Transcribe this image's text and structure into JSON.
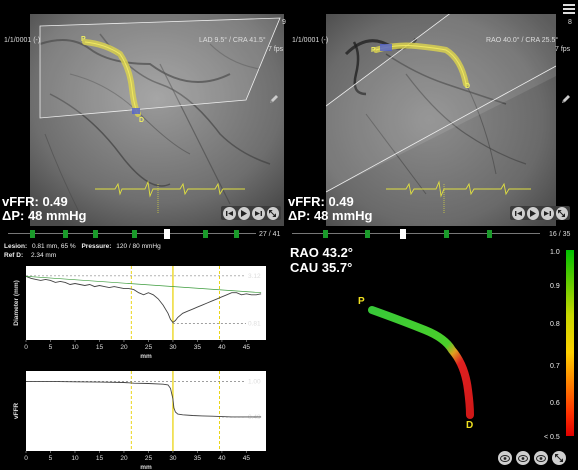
{
  "left_view": {
    "series_label": "1/1/0001 (-)",
    "angle_label": "LAD 9.5° / CRA 41.5°",
    "frame_count_top": "9",
    "fps": "7 fps",
    "marker_p": "P",
    "marker_d": "D",
    "vffr_label": "vFFR: 0.49",
    "dp_label": "ΔP: 48 mmHg",
    "frame_position": "27 / 41"
  },
  "right_view": {
    "series_label": "1/1/0001 (-)",
    "angle_label": "RAO 40.0° / CRA 25.5°",
    "frame_count_top": "8",
    "fps": "7 fps",
    "marker_p": "P",
    "marker_d": "D",
    "vffr_label": "vFFR: 0.49",
    "dp_label": "ΔP: 48 mmHg",
    "frame_position": "16 / 35"
  },
  "lesion_info": {
    "lesion": "Lesion:",
    "lesion_value": "0.81 mm, 65 %",
    "pressure": "Pressure:",
    "pressure_value": "120 / 80 mmHg",
    "ref": "Ref D:",
    "ref_value": "2.34 mm"
  },
  "model_view": {
    "rao_label": "RAO 43.2°",
    "cau_label": "CAU 35.7°",
    "marker_p": "P",
    "marker_d": "D"
  },
  "color_legend": {
    "ticks": [
      "1.0",
      "0.9",
      "0.8",
      "0.7",
      "0.6",
      "< 0.5"
    ],
    "colors": [
      "#00c000",
      "#c8d800",
      "#ffd000",
      "#ff8000",
      "#ff3000",
      "#e00000"
    ]
  },
  "chart_data": [
    {
      "type": "line",
      "ylabel": "Diameter (mm)",
      "xlabel": "mm",
      "xlim": [
        0,
        49
      ],
      "x_ticks": [
        "0",
        "5",
        "10",
        "15",
        "20",
        "25",
        "30",
        "35",
        "40",
        "45"
      ],
      "ref_values": [
        "3.12",
        "0.81"
      ],
      "series": [
        {
          "x": [
            0,
            1,
            2,
            3,
            4,
            5,
            6,
            7,
            8,
            9,
            10,
            11,
            12,
            13,
            14,
            15,
            16,
            17,
            18,
            19,
            20,
            21,
            22,
            23,
            24,
            25,
            26,
            27,
            28,
            29,
            29.5,
            30,
            30.5,
            31,
            32,
            33,
            34,
            35,
            36,
            37,
            38,
            39,
            40,
            41,
            42,
            43,
            44,
            45,
            46,
            47,
            48
          ],
          "y": [
            3.1,
            3.0,
            2.95,
            2.9,
            2.95,
            2.9,
            2.8,
            2.85,
            2.8,
            2.7,
            2.75,
            2.7,
            2.65,
            2.7,
            2.6,
            2.65,
            2.6,
            2.55,
            2.6,
            2.55,
            2.5,
            2.5,
            2.45,
            2.3,
            2.2,
            2.3,
            2.2,
            2.0,
            1.7,
            1.3,
            1.0,
            0.85,
            0.95,
            1.1,
            1.3,
            1.4,
            1.5,
            1.6,
            1.7,
            1.8,
            1.9,
            2.0,
            2.1,
            2.2,
            2.3,
            2.3,
            2.2,
            2.25,
            2.2,
            2.2,
            2.25
          ]
        },
        {
          "x": [
            0,
            48
          ],
          "y": [
            3.1,
            2.3
          ]
        }
      ],
      "ylim": [
        0,
        3.6
      ],
      "vlines": [
        21.5,
        30,
        39.5
      ]
    },
    {
      "type": "line",
      "ylabel": "vFFR",
      "xlabel": "mm",
      "xlim": [
        0,
        49
      ],
      "x_ticks": [
        "0",
        "5",
        "10",
        "15",
        "20",
        "25",
        "30",
        "35",
        "40",
        "45"
      ],
      "ref_values": [
        "1.00",
        "0.49"
      ],
      "series": [
        {
          "x": [
            0,
            5,
            10,
            15,
            20,
            21,
            22,
            25,
            28,
            29,
            29.5,
            30,
            30.2,
            30.5,
            31,
            32,
            34,
            36,
            38,
            40,
            42,
            44,
            46,
            48
          ],
          "y": [
            1.0,
            1.0,
            0.995,
            0.99,
            0.985,
            0.98,
            0.975,
            0.97,
            0.96,
            0.95,
            0.9,
            0.75,
            0.62,
            0.56,
            0.53,
            0.52,
            0.51,
            0.505,
            0.5,
            0.495,
            0.49,
            0.49,
            0.49,
            0.49
          ]
        }
      ],
      "ylim": [
        0,
        1.15
      ],
      "vlines": [
        21.5,
        30,
        39.5
      ]
    }
  ]
}
